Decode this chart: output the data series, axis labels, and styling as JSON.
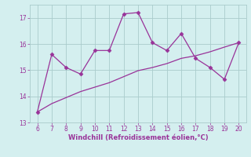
{
  "title": "",
  "xlabel": "Windchill (Refroidissement éolien,°C)",
  "x_data": [
    6,
    7,
    8,
    9,
    10,
    11,
    12,
    13,
    14,
    15,
    16,
    17,
    18,
    19,
    20
  ],
  "y_line": [
    13.4,
    15.6,
    15.1,
    14.85,
    15.75,
    15.75,
    17.15,
    17.2,
    16.05,
    15.75,
    16.4,
    15.45,
    15.1,
    14.65,
    16.05
  ],
  "y_trend": [
    13.4,
    13.72,
    13.95,
    14.18,
    14.35,
    14.52,
    14.75,
    14.98,
    15.1,
    15.25,
    15.45,
    15.55,
    15.7,
    15.88,
    16.05
  ],
  "line_color": "#993399",
  "trend_color": "#993399",
  "bg_color": "#d4efef",
  "grid_color": "#aacccc",
  "text_color": "#993399",
  "ylim": [
    13.0,
    17.5
  ],
  "xlim": [
    5.5,
    20.5
  ],
  "yticks": [
    13,
    14,
    15,
    16,
    17
  ],
  "xticks": [
    6,
    7,
    8,
    9,
    10,
    11,
    12,
    13,
    14,
    15,
    16,
    17,
    18,
    19,
    20
  ]
}
